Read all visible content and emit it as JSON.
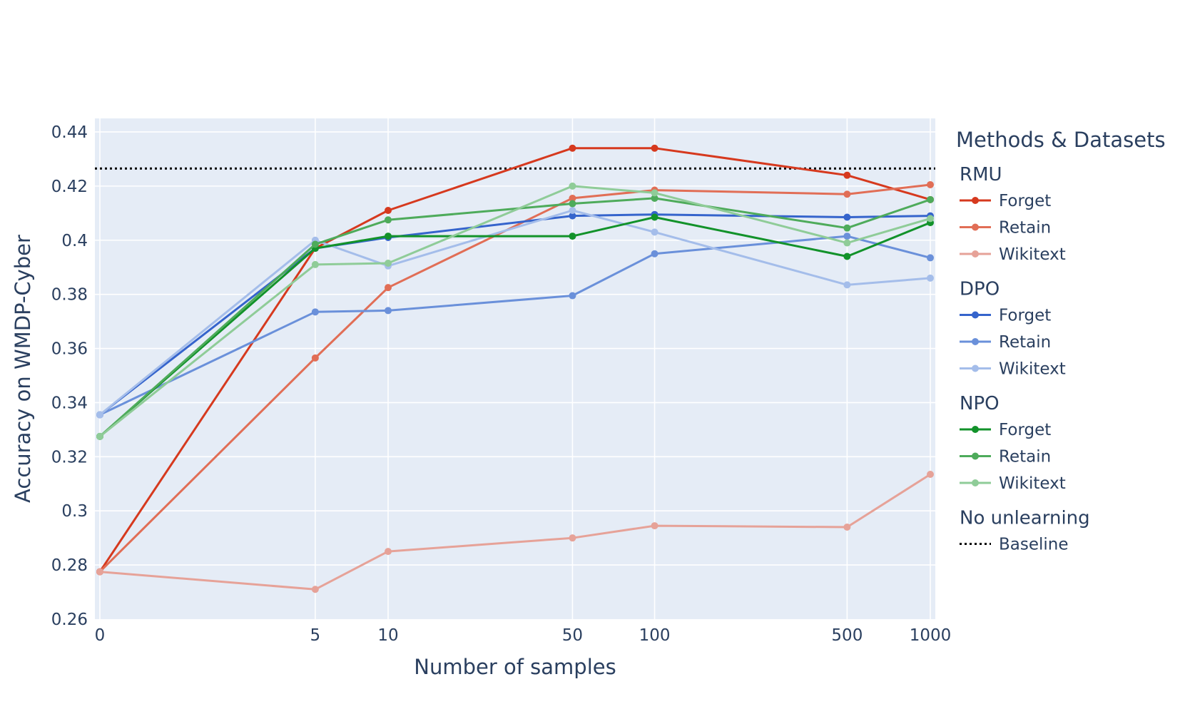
{
  "chart_data": {
    "type": "line",
    "title": "",
    "xlabel": "Number of samples",
    "ylabel": "Accuracy on WMDP-Cyber",
    "x": [
      0,
      5,
      10,
      50,
      100,
      500,
      1000
    ],
    "x_tick_labels": [
      "0",
      "5",
      "10",
      "50",
      "100",
      "500",
      "1000"
    ],
    "x_scale": "log(1+x)",
    "y_ticks": [
      0.26,
      0.28,
      0.3,
      0.32,
      0.34,
      0.36,
      0.38,
      0.4,
      0.42,
      0.44
    ],
    "y_tick_labels": [
      "0.26",
      "0.28",
      "0.3",
      "0.32",
      "0.34",
      "0.36",
      "0.38",
      "0.4",
      "0.42",
      "0.44"
    ],
    "ylim": [
      0.26,
      0.445
    ],
    "grid": true,
    "background": "#e5ecf6",
    "legend": {
      "title": "Methods & Datasets",
      "placement": "right",
      "groups": [
        {
          "name": "RMU",
          "entries": [
            "Forget",
            "Retain",
            "Wikitext"
          ]
        },
        {
          "name": "DPO",
          "entries": [
            "Forget",
            "Retain",
            "Wikitext"
          ]
        },
        {
          "name": "NPO",
          "entries": [
            "Forget",
            "Retain",
            "Wikitext"
          ]
        },
        {
          "name": "No unlearning",
          "entries": [
            "Baseline"
          ]
        }
      ]
    },
    "baseline": {
      "group": "No unlearning",
      "name": "Baseline",
      "value": 0.4265,
      "color": "#000000",
      "style": "dotted"
    },
    "series": [
      {
        "group": "RMU",
        "name": "Forget",
        "color": "#d6391e",
        "opacity": 1.0,
        "values": [
          0.2775,
          0.397,
          0.411,
          0.434,
          0.434,
          0.424,
          0.415
        ]
      },
      {
        "group": "RMU",
        "name": "Retain",
        "color": "#e16e56",
        "opacity": 1.0,
        "values": [
          0.2775,
          0.3565,
          0.3825,
          0.4155,
          0.4185,
          0.417,
          0.4205
        ]
      },
      {
        "group": "RMU",
        "name": "Wikitext",
        "color": "#e6a298",
        "opacity": 1.0,
        "values": [
          0.2775,
          0.271,
          0.285,
          0.29,
          0.2945,
          0.294,
          0.3135
        ]
      },
      {
        "group": "DPO",
        "name": "Forget",
        "color": "#3564cc",
        "opacity": 1.0,
        "values": [
          0.3355,
          0.397,
          0.401,
          0.409,
          0.4095,
          0.4085,
          0.409
        ]
      },
      {
        "group": "DPO",
        "name": "Retain",
        "color": "#6a90da",
        "opacity": 1.0,
        "values": [
          0.3355,
          0.3735,
          0.374,
          0.3795,
          0.395,
          0.4015,
          0.3935
        ]
      },
      {
        "group": "DPO",
        "name": "Wikitext",
        "color": "#a4bdea",
        "opacity": 1.0,
        "values": [
          0.3355,
          0.4,
          0.3905,
          0.411,
          0.403,
          0.3835,
          0.386
        ]
      },
      {
        "group": "NPO",
        "name": "Forget",
        "color": "#12922a",
        "opacity": 1.0,
        "values": [
          0.3275,
          0.397,
          0.4015,
          0.4015,
          0.4085,
          0.394,
          0.4065
        ]
      },
      {
        "group": "NPO",
        "name": "Retain",
        "color": "#4eab5b",
        "opacity": 1.0,
        "values": [
          0.3275,
          0.3985,
          0.4075,
          0.4135,
          0.4155,
          0.4045,
          0.415
        ]
      },
      {
        "group": "NPO",
        "name": "Wikitext",
        "color": "#8fcc98",
        "opacity": 1.0,
        "values": [
          0.3275,
          0.391,
          0.3915,
          0.42,
          0.4175,
          0.399,
          0.408
        ]
      }
    ]
  }
}
